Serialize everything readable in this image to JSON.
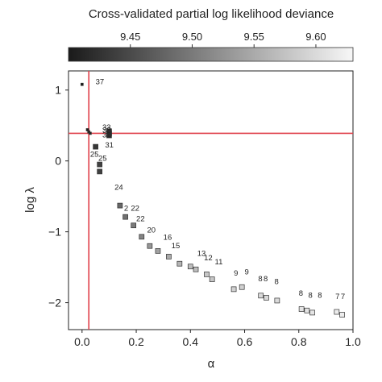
{
  "colorbar": {
    "title": "Cross-validated partial log likelihood deviance",
    "range": [
      9.4,
      9.63
    ],
    "ticks": [
      {
        "value": 9.45,
        "label": "9.45"
      },
      {
        "value": 9.5,
        "label": "9.50"
      },
      {
        "value": 9.55,
        "label": "9.55"
      },
      {
        "value": 9.6,
        "label": "9.60"
      }
    ],
    "color_low": "#1a1a1a",
    "color_high": "#f7f7f7"
  },
  "chart_data": {
    "type": "scatter",
    "title": "",
    "xlabel": "α",
    "ylabel": "log λ",
    "xlim": [
      -0.05,
      1.0
    ],
    "ylim": [
      -2.38,
      1.27
    ],
    "xticks": [
      {
        "value": 0.0,
        "label": "0.0"
      },
      {
        "value": 0.2,
        "label": "0.2"
      },
      {
        "value": 0.4,
        "label": "0.4"
      },
      {
        "value": 0.6,
        "label": "0.6"
      },
      {
        "value": 0.8,
        "label": "0.8"
      },
      {
        "value": 1.0,
        "label": "1.0"
      }
    ],
    "yticks": [
      {
        "value": 1,
        "label": "1"
      },
      {
        "value": 0,
        "label": "0"
      },
      {
        "value": -1,
        "label": "−1"
      },
      {
        "value": -2,
        "label": "−2"
      }
    ],
    "grid": false,
    "reference_lines": {
      "vertical_x": 0.025,
      "horizontal_y": 0.39,
      "color": "#e0404a"
    },
    "points": [
      {
        "x": 0.0,
        "y": 1.08,
        "deviance": 9.4,
        "label": "37"
      },
      {
        "x": 0.02,
        "y": 0.44,
        "deviance": 9.4,
        "label": ""
      },
      {
        "x": 0.025,
        "y": 0.41,
        "deviance": 9.41,
        "label": ""
      },
      {
        "x": 0.03,
        "y": 0.39,
        "deviance": 9.41,
        "label": ""
      },
      {
        "x": 0.1,
        "y": 0.42,
        "deviance": 9.42,
        "label": "33"
      },
      {
        "x": 0.1,
        "y": 0.39,
        "deviance": 9.42,
        "label": "32"
      },
      {
        "x": 0.1,
        "y": 0.36,
        "deviance": 9.42,
        "label": "31"
      },
      {
        "x": 0.05,
        "y": 0.2,
        "deviance": 9.43,
        "label": "31"
      },
      {
        "x": 0.065,
        "y": -0.05,
        "deviance": 9.44,
        "label": "25"
      },
      {
        "x": 0.065,
        "y": -0.15,
        "deviance": 9.44,
        "label": "25"
      },
      {
        "x": 0.14,
        "y": -0.63,
        "deviance": 9.48,
        "label": "24"
      },
      {
        "x": 0.16,
        "y": -0.79,
        "deviance": 9.49,
        "label": "22"
      },
      {
        "x": 0.19,
        "y": -0.91,
        "deviance": 9.5,
        "label": "22"
      },
      {
        "x": 0.22,
        "y": -1.07,
        "deviance": 9.51,
        "label": "20"
      },
      {
        "x": 0.25,
        "y": -1.2,
        "deviance": 9.53,
        "label": "16"
      },
      {
        "x": 0.28,
        "y": -1.27,
        "deviance": 9.54,
        "label": "15"
      },
      {
        "x": 0.32,
        "y": -1.35,
        "deviance": 9.55,
        "label": "13"
      },
      {
        "x": 0.36,
        "y": -1.45,
        "deviance": 9.56,
        "label": "12"
      },
      {
        "x": 0.4,
        "y": -1.49,
        "deviance": 9.57,
        "label": "11"
      },
      {
        "x": 0.42,
        "y": -1.53,
        "deviance": 9.57,
        "label": ""
      },
      {
        "x": 0.46,
        "y": -1.6,
        "deviance": 9.58,
        "label": ""
      },
      {
        "x": 0.48,
        "y": -1.67,
        "deviance": 9.58,
        "label": "9"
      },
      {
        "x": 0.56,
        "y": -1.81,
        "deviance": 9.59,
        "label": "9"
      },
      {
        "x": 0.59,
        "y": -1.78,
        "deviance": 9.59,
        "label": "8"
      },
      {
        "x": 0.66,
        "y": -1.9,
        "deviance": 9.6,
        "label": "8"
      },
      {
        "x": 0.68,
        "y": -1.93,
        "deviance": 9.6,
        "label": "8"
      },
      {
        "x": 0.72,
        "y": -1.97,
        "deviance": 9.6,
        "label": ""
      },
      {
        "x": 0.81,
        "y": -2.09,
        "deviance": 9.61,
        "label": "8"
      },
      {
        "x": 0.83,
        "y": -2.11,
        "deviance": 9.61,
        "label": "8"
      },
      {
        "x": 0.85,
        "y": -2.14,
        "deviance": 9.61,
        "label": "8"
      },
      {
        "x": 0.94,
        "y": -2.13,
        "deviance": 9.62,
        "label": "7"
      },
      {
        "x": 0.96,
        "y": -2.17,
        "deviance": 9.62,
        "label": "7"
      }
    ],
    "point_labels": [
      {
        "x": 0.05,
        "y": 1.08,
        "text": "37"
      },
      {
        "x": 0.075,
        "y": 0.44,
        "text": "33"
      },
      {
        "x": 0.075,
        "y": 0.4,
        "text": "32"
      },
      {
        "x": 0.075,
        "y": 0.33,
        "text": "31"
      },
      {
        "x": 0.085,
        "y": 0.19,
        "text": "31"
      },
      {
        "x": 0.03,
        "y": 0.06,
        "text": "25"
      },
      {
        "x": 0.06,
        "y": 0.0,
        "text": "25"
      },
      {
        "x": 0.12,
        "y": -0.41,
        "text": "24"
      },
      {
        "x": 0.155,
        "y": -0.7,
        "text": "2"
      },
      {
        "x": 0.18,
        "y": -0.7,
        "text": "22"
      },
      {
        "x": 0.2,
        "y": -0.85,
        "text": "22"
      },
      {
        "x": 0.24,
        "y": -1.01,
        "text": "20"
      },
      {
        "x": 0.3,
        "y": -1.11,
        "text": "16"
      },
      {
        "x": 0.33,
        "y": -1.23,
        "text": "15"
      },
      {
        "x": 0.425,
        "y": -1.34,
        "text": "13"
      },
      {
        "x": 0.45,
        "y": -1.4,
        "text": "12"
      },
      {
        "x": 0.49,
        "y": -1.46,
        "text": "11"
      },
      {
        "x": 0.56,
        "y": -1.62,
        "text": "9"
      },
      {
        "x": 0.6,
        "y": -1.6,
        "text": "9"
      },
      {
        "x": 0.65,
        "y": -1.7,
        "text": "8"
      },
      {
        "x": 0.67,
        "y": -1.7,
        "text": "8"
      },
      {
        "x": 0.71,
        "y": -1.74,
        "text": "8"
      },
      {
        "x": 0.8,
        "y": -1.9,
        "text": "8"
      },
      {
        "x": 0.835,
        "y": -1.93,
        "text": "8"
      },
      {
        "x": 0.87,
        "y": -1.93,
        "text": "8"
      },
      {
        "x": 0.935,
        "y": -1.95,
        "text": "7"
      },
      {
        "x": 0.955,
        "y": -1.95,
        "text": "7"
      }
    ]
  }
}
